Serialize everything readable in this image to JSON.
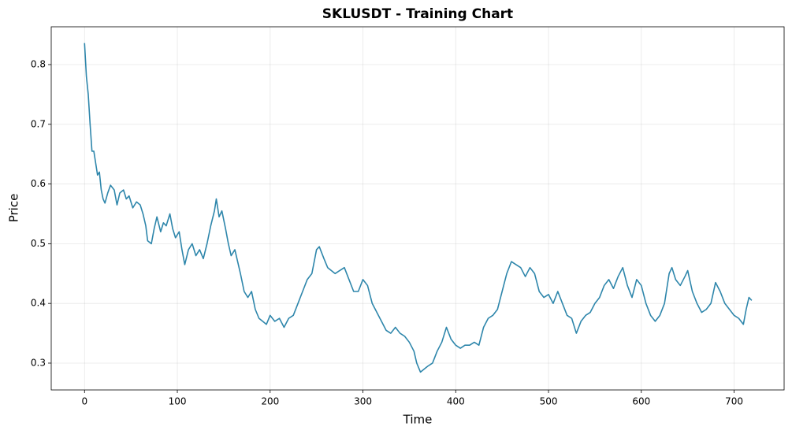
{
  "chart_data": {
    "type": "line",
    "title": "SKLUSDT - Training Chart",
    "x_label": "Time",
    "y_label": "Price",
    "x": [
      0,
      2,
      4,
      6,
      8,
      10,
      12,
      14,
      16,
      18,
      20,
      22,
      25,
      28,
      32,
      35,
      38,
      42,
      45,
      48,
      52,
      56,
      60,
      63,
      66,
      68,
      72,
      75,
      78,
      82,
      85,
      88,
      92,
      95,
      98,
      102,
      105,
      108,
      112,
      116,
      120,
      124,
      128,
      132,
      136,
      140,
      142,
      145,
      148,
      152,
      155,
      158,
      162,
      165,
      168,
      172,
      176,
      180,
      184,
      188,
      192,
      196,
      200,
      205,
      210,
      215,
      220,
      225,
      230,
      235,
      240,
      245,
      250,
      253,
      258,
      262,
      266,
      270,
      275,
      280,
      285,
      290,
      295,
      300,
      305,
      310,
      315,
      320,
      325,
      330,
      335,
      340,
      345,
      350,
      355,
      358,
      362,
      366,
      370,
      375,
      380,
      385,
      390,
      395,
      400,
      405,
      410,
      415,
      420,
      425,
      430,
      435,
      440,
      445,
      450,
      455,
      460,
      465,
      470,
      475,
      480,
      485,
      490,
      495,
      500,
      505,
      510,
      515,
      520,
      525,
      530,
      535,
      540,
      545,
      550,
      555,
      560,
      565,
      570,
      575,
      580,
      585,
      590,
      595,
      600,
      605,
      610,
      615,
      620,
      625,
      630,
      633,
      637,
      642,
      647,
      650,
      655,
      660,
      665,
      670,
      675,
      680,
      685,
      690,
      695,
      700,
      705,
      710,
      713,
      716,
      719
    ],
    "values": [
      0.836,
      0.78,
      0.75,
      0.7,
      0.655,
      0.655,
      0.635,
      0.615,
      0.62,
      0.59,
      0.575,
      0.568,
      0.585,
      0.598,
      0.59,
      0.565,
      0.585,
      0.59,
      0.575,
      0.58,
      0.56,
      0.57,
      0.565,
      0.55,
      0.53,
      0.505,
      0.5,
      0.525,
      0.545,
      0.52,
      0.535,
      0.53,
      0.55,
      0.525,
      0.51,
      0.52,
      0.49,
      0.465,
      0.49,
      0.5,
      0.48,
      0.49,
      0.475,
      0.5,
      0.53,
      0.555,
      0.575,
      0.545,
      0.555,
      0.525,
      0.5,
      0.48,
      0.49,
      0.47,
      0.45,
      0.42,
      0.41,
      0.42,
      0.39,
      0.375,
      0.37,
      0.365,
      0.38,
      0.37,
      0.375,
      0.36,
      0.375,
      0.38,
      0.4,
      0.42,
      0.44,
      0.45,
      0.49,
      0.495,
      0.475,
      0.46,
      0.455,
      0.45,
      0.455,
      0.46,
      0.44,
      0.42,
      0.42,
      0.44,
      0.43,
      0.4,
      0.385,
      0.37,
      0.355,
      0.35,
      0.36,
      0.35,
      0.345,
      0.335,
      0.32,
      0.3,
      0.285,
      0.29,
      0.295,
      0.3,
      0.32,
      0.335,
      0.36,
      0.34,
      0.33,
      0.325,
      0.33,
      0.33,
      0.335,
      0.33,
      0.36,
      0.375,
      0.38,
      0.39,
      0.42,
      0.45,
      0.47,
      0.465,
      0.46,
      0.445,
      0.46,
      0.45,
      0.42,
      0.41,
      0.415,
      0.4,
      0.42,
      0.4,
      0.38,
      0.375,
      0.35,
      0.37,
      0.38,
      0.385,
      0.4,
      0.41,
      0.43,
      0.44,
      0.425,
      0.445,
      0.46,
      0.43,
      0.41,
      0.44,
      0.43,
      0.4,
      0.38,
      0.37,
      0.38,
      0.4,
      0.45,
      0.46,
      0.44,
      0.43,
      0.445,
      0.455,
      0.42,
      0.4,
      0.385,
      0.39,
      0.4,
      0.435,
      0.42,
      0.4,
      0.39,
      0.38,
      0.375,
      0.365,
      0.39,
      0.41,
      0.405
    ],
    "color": "#2e86ab",
    "xlim": [
      -35.9,
      753.9
    ],
    "ylim": [
      0.2551,
      0.8633
    ],
    "xticks": [
      0,
      100,
      200,
      300,
      400,
      500,
      600,
      700
    ],
    "yticks": [
      0.3,
      0.4,
      0.5,
      0.6,
      0.7,
      0.8
    ],
    "grid": true
  }
}
